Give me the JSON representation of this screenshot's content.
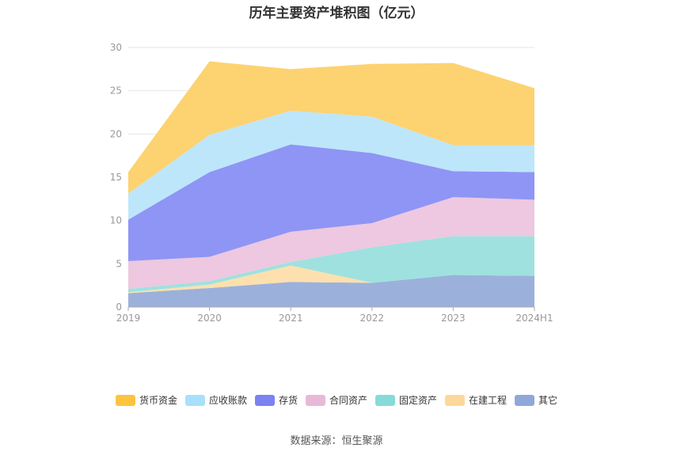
{
  "chart_data": {
    "type": "area",
    "stacked": true,
    "title": "历年主要资产堆积图（亿元）",
    "categories": [
      "2019",
      "2020",
      "2021",
      "2022",
      "2023",
      "2024H1"
    ],
    "ylim": [
      0,
      30
    ],
    "yticks": [
      0,
      5,
      10,
      15,
      20,
      25,
      30
    ],
    "grid": true,
    "legend_position": "bottom",
    "series": [
      {
        "name": "其它",
        "color": "#9bb1dc",
        "values": [
          1.6,
          2.2,
          2.9,
          2.8,
          3.7,
          3.6
        ]
      },
      {
        "name": "在建工程",
        "color": "#fde0ad",
        "values": [
          0.1,
          0.4,
          1.9,
          0.0,
          0.0,
          0.0
        ]
      },
      {
        "name": "固定资产",
        "color": "#9fe1df",
        "values": [
          0.4,
          0.4,
          0.4,
          4.1,
          4.5,
          4.6
        ]
      },
      {
        "name": "合同资产",
        "color": "#edc8e0",
        "values": [
          3.2,
          2.8,
          3.5,
          2.8,
          4.5,
          4.2
        ]
      },
      {
        "name": "存货",
        "color": "#8f95f5",
        "values": [
          4.8,
          9.8,
          10.1,
          8.1,
          3.0,
          3.2
        ]
      },
      {
        "name": "应收账款",
        "color": "#bde6fb",
        "values": [
          3.0,
          4.3,
          3.9,
          4.2,
          3.0,
          3.1
        ]
      },
      {
        "name": "货币资金",
        "color": "#fdd271",
        "values": [
          2.5,
          8.5,
          4.8,
          6.1,
          9.5,
          6.6
        ]
      }
    ]
  },
  "legend": [
    {
      "name": "货币资金",
      "color": "#fcc43f"
    },
    {
      "name": "应收账款",
      "color": "#a8e0fb"
    },
    {
      "name": "存货",
      "color": "#7b82f2"
    },
    {
      "name": "合同资产",
      "color": "#e8b8d8"
    },
    {
      "name": "固定资产",
      "color": "#86dbd8"
    },
    {
      "name": "在建工程",
      "color": "#fdd89a"
    },
    {
      "name": "其它",
      "color": "#8fa8d9"
    }
  ],
  "source": "数据来源：恒生聚源"
}
